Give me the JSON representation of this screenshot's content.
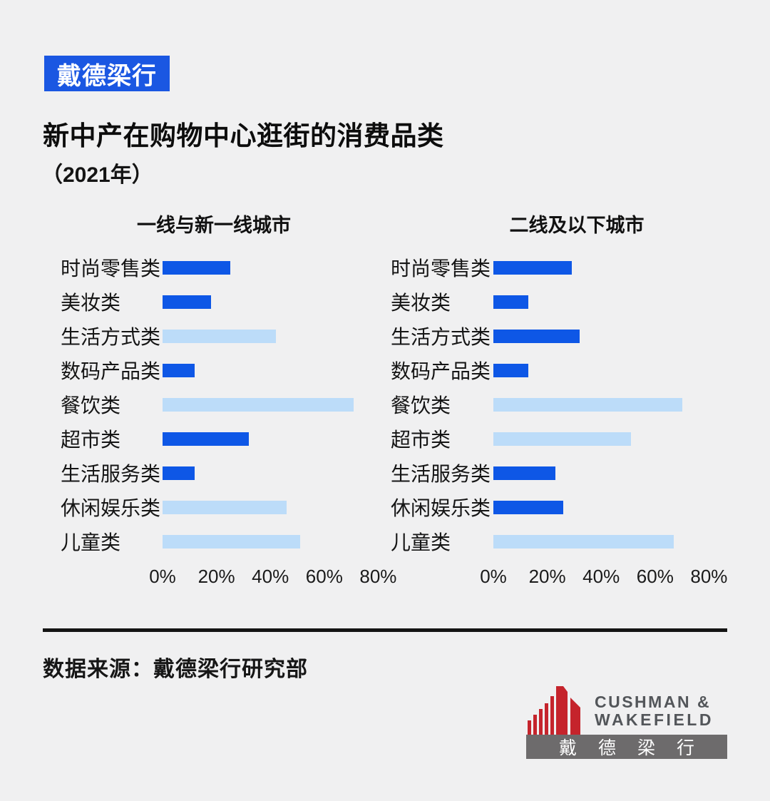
{
  "page": {
    "background": "#f0f0f1"
  },
  "header": {
    "badge": "戴德梁行",
    "title": "新中产在购物中心逛街的消费品类",
    "subtitle": "（2021年）"
  },
  "colors": {
    "badge_bg": "#1a57e2",
    "bar_dark_blue": "#0e57e6",
    "bar_light_blue": "#bcdcf9",
    "divider": "#141414",
    "logo_red": "#c5242c",
    "logo_banner_gray": "#6d6b6c",
    "logo_text_gray": "#53565a"
  },
  "chart_data": [
    {
      "type": "bar",
      "orientation": "horizontal",
      "title": "一线与新一线城市",
      "categories": [
        "时尚零售类",
        "美妆类",
        "生活方式类",
        "数码产品类",
        "餐饮类",
        "超市类",
        "生活服务类",
        "休闲娱乐类",
        "儿童类"
      ],
      "values": [
        25,
        18,
        42,
        12,
        71,
        32,
        12,
        46,
        51
      ],
      "bar_color_roles": [
        "dark",
        "dark",
        "light",
        "dark",
        "light",
        "dark",
        "dark",
        "light",
        "light"
      ],
      "unit": "%",
      "xlim": [
        0,
        80
      ],
      "xticks": [
        0,
        20,
        40,
        60,
        80
      ],
      "xtick_labels": [
        "0%",
        "20%",
        "40%",
        "60%",
        "80%"
      ],
      "grid": false,
      "legend": "none"
    },
    {
      "type": "bar",
      "orientation": "horizontal",
      "title": "二线及以下城市",
      "categories": [
        "时尚零售类",
        "美妆类",
        "生活方式类",
        "数码产品类",
        "餐饮类",
        "超市类",
        "生活服务类",
        "休闲娱乐类",
        "儿童类"
      ],
      "values": [
        29,
        13,
        32,
        13,
        70,
        51,
        23,
        26,
        67
      ],
      "bar_color_roles": [
        "dark",
        "dark",
        "dark",
        "dark",
        "light",
        "light",
        "dark",
        "dark",
        "light"
      ],
      "unit": "%",
      "xlim": [
        0,
        80
      ],
      "xticks": [
        0,
        20,
        40,
        60,
        80
      ],
      "xtick_labels": [
        "0%",
        "20%",
        "40%",
        "60%",
        "80%"
      ],
      "grid": false,
      "legend": "none"
    }
  ],
  "footer": {
    "source": "数据来源：戴德梁行研究部",
    "logo": {
      "icon": "red-building-bars-icon",
      "name_line1": "CUSHMAN &",
      "name_line2": "WAKEFIELD",
      "banner": "戴德梁行"
    }
  }
}
